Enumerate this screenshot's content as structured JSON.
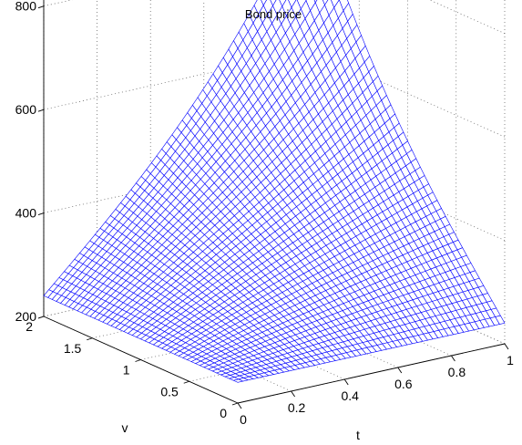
{
  "chart_data": {
    "type": "surface",
    "title": "Bond price",
    "xlabel": "t",
    "ylabel": "v",
    "zlabel": "",
    "x": {
      "min": 0,
      "max": 1,
      "ticks": [
        0,
        0.2,
        0.4,
        0.6,
        0.8,
        1
      ],
      "tick_labels": [
        "0",
        "0.2",
        "0.4",
        "0.6",
        "0.8",
        "1"
      ]
    },
    "y": {
      "min": 0,
      "max": 2,
      "ticks": [
        0,
        0.5,
        1,
        1.5,
        2
      ],
      "tick_labels": [
        "0",
        "0.5",
        "1",
        "1.5",
        "2"
      ]
    },
    "z": {
      "min": 200,
      "max": 900,
      "ticks": [
        200,
        400,
        600,
        800
      ],
      "tick_labels": [
        "200",
        "400",
        "600",
        "800"
      ]
    },
    "surface_corners": {
      "t0_v0": 240,
      "t1_v0": 240,
      "t0_v2": 240,
      "t1_v2": 900
    },
    "grid": true,
    "color": "#0000ff"
  }
}
